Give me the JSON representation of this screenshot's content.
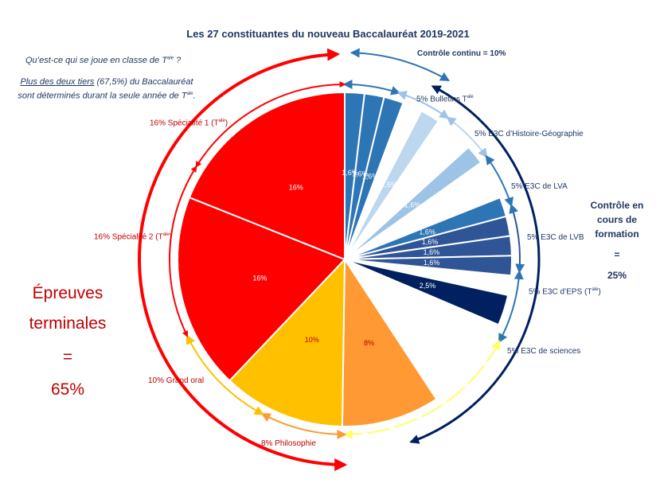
{
  "title": "Les 27 constituantes du nouveau Baccalauréat 2019-2021",
  "intro": {
    "line1_prefix": "Qu’est-ce qui se joue en classe de T",
    "line1_sup": "ale",
    "line1_suffix": " ?",
    "line2_underlined": "Plus des deux tiers",
    "line2_rest": " (67,5%) du Baccalauréat sont déterminés durant la seule année de T",
    "line2_sup": "ale",
    "line2_end": "."
  },
  "left_summary": {
    "line1": "Épreuves",
    "line2": "terminales",
    "eq": "=",
    "value": "65%"
  },
  "right_summary": {
    "line1": "Contrôle en",
    "line2": "cours de",
    "line3": "formation",
    "eq": "=",
    "value": "25%"
  },
  "group_labels": {
    "controle_continu": "Contrôle continu = 10%",
    "bulletins": "5% Bulletins T",
    "bulletins_sup": "ale",
    "e3c_hg": "5% E3C d’Histoire-Géographie",
    "e3c_lva": "5% E3C de LVA",
    "e3c_lvb": "5% E3C de LVB",
    "e3c_eps": "5% E3C d’EPS (T",
    "e3c_eps_sup": "ale",
    "e3c_eps_end": ")",
    "e3c_sciences": "5% E3C de sciences",
    "specialite1": "16% Spécialité 1 (T",
    "specialite1_sup": "ale",
    "specialite1_end": ")",
    "specialite2": "16% Spécialité 2 (T",
    "specialite2_sup": "ale",
    "specialite2_end": ")",
    "grand_oral": "10% Grand oral",
    "philosophie": "8% Philosophie"
  },
  "chart_data": {
    "type": "pie",
    "title": "Les 27 constituantes du nouveau Baccalauréat 2019-2021",
    "start_angle_deg": 0,
    "direction": "clockwise",
    "slices": [
      {
        "label": "1,6%",
        "value": 1.6,
        "group": "Bulletins",
        "color": "#2e75b6",
        "label_color": "#ffffff",
        "hidden": false
      },
      {
        "label": "1,6%",
        "value": 1.6,
        "group": "Bulletins",
        "color": "#2e75b6",
        "label_color": "#ffffff",
        "hidden": false
      },
      {
        "label": "1,6%",
        "value": 1.6,
        "group": "Bulletins",
        "color": "#2e75b6",
        "label_color": "#ffffff",
        "hidden": false
      },
      {
        "label": "",
        "value": 1.6,
        "group": "E3C Histoire-Géographie",
        "color": "#ffffff",
        "label_color": "#ffffff",
        "hidden": true
      },
      {
        "label": "1,6%",
        "value": 1.6,
        "group": "E3C Histoire-Géographie",
        "color": "#bdd7ee",
        "label_color": "#ffffff",
        "hidden": false
      },
      {
        "label": "",
        "value": 1.6,
        "group": "E3C Histoire-Géographie",
        "color": "#ffffff",
        "label_color": "#ffffff",
        "hidden": true
      },
      {
        "label": "",
        "value": 1.6,
        "group": "E3C LVA",
        "color": "#ffffff",
        "label_color": "#ffffff",
        "hidden": true
      },
      {
        "label": "1,6%",
        "value": 1.6,
        "group": "E3C LVA",
        "color": "#9dc3e6",
        "label_color": "#ffffff",
        "hidden": false
      },
      {
        "label": "",
        "value": 1.6,
        "group": "E3C LVA",
        "color": "#ffffff",
        "label_color": "#ffffff",
        "hidden": true
      },
      {
        "label": "",
        "value": 1.6,
        "group": "E3C LVB",
        "color": "#ffffff",
        "label_color": "#ffffff",
        "hidden": true
      },
      {
        "label": "1,6%",
        "value": 1.6,
        "group": "E3C LVB",
        "color": "#2e75b6",
        "label_color": "#ffffff",
        "hidden": false
      },
      {
        "label": "1,6%",
        "value": 1.6,
        "group": "E3C EPS",
        "color": "#2f5597",
        "label_color": "#ffffff",
        "hidden": false
      },
      {
        "label": "1,6%",
        "value": 1.6,
        "group": "E3C EPS",
        "color": "#2f5597",
        "label_color": "#ffffff",
        "hidden": false
      },
      {
        "label": "1,6%",
        "value": 1.6,
        "group": "E3C EPS",
        "color": "#2f5597",
        "label_color": "#ffffff",
        "hidden": false
      },
      {
        "label": "",
        "value": 1.6,
        "group": "E3C sciences",
        "color": "#ffffff",
        "label_color": "#ffffff",
        "hidden": true
      },
      {
        "label": "2,5%",
        "value": 2.5,
        "group": "E3C sciences",
        "color": "#002060",
        "label_color": "#ffffff",
        "hidden": false
      },
      {
        "label": "",
        "value": 7.9,
        "group": "gap",
        "color": "#ffffff",
        "label_color": "#ffffff",
        "hidden": true
      },
      {
        "label": "8%",
        "value": 8,
        "group": "Philosophie",
        "color": "#ff9933",
        "label_color": "#c00000",
        "hidden": false
      },
      {
        "label": "10%",
        "value": 10,
        "group": "Grand oral",
        "color": "#ffc000",
        "label_color": "#c00000",
        "hidden": false
      },
      {
        "label": "16%",
        "value": 16,
        "group": "Spécialité 2",
        "color": "#ff0000",
        "label_color": "#ffffff",
        "hidden": false
      },
      {
        "label": "16%",
        "value": 16,
        "group": "Spécialité 1",
        "color": "#ff0000",
        "label_color": "#ffffff",
        "hidden": false
      }
    ]
  }
}
